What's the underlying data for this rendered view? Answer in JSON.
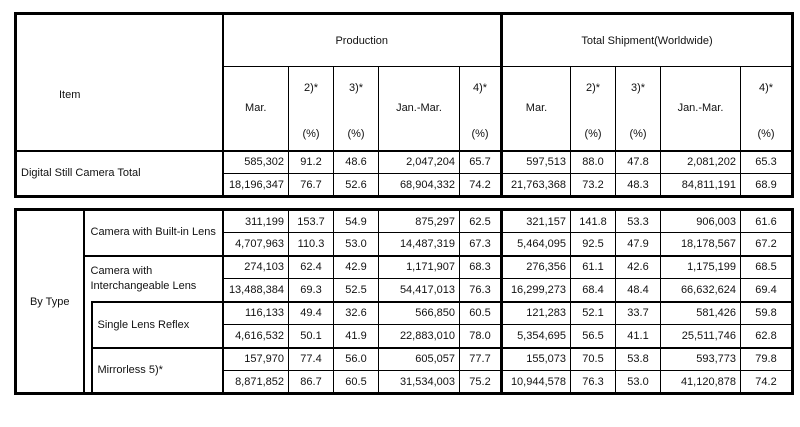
{
  "colors": {
    "border": "#000000",
    "background": "#ffffff",
    "text": "#111111"
  },
  "table1": {
    "item_header": "Item",
    "groups": {
      "production": "Production",
      "shipment": "Total Shipment(Worldwide)"
    },
    "columns": [
      {
        "label": "Mar."
      },
      {
        "label": "2)*",
        "unit": "(%)"
      },
      {
        "label": "3)*",
        "unit": "(%)"
      },
      {
        "label": "Jan.-Mar."
      },
      {
        "label": "4)*",
        "unit": "(%)"
      }
    ],
    "row_label": "Digital Still Camera Total",
    "rows": [
      [
        "585,302",
        "91.2",
        "48.6",
        "2,047,204",
        "65.7",
        "597,513",
        "88.0",
        "47.8",
        "2,081,202",
        "65.3"
      ],
      [
        "18,196,347",
        "76.7",
        "52.6",
        "68,904,332",
        "74.2",
        "21,763,368",
        "73.2",
        "48.3",
        "84,811,191",
        "68.9"
      ]
    ]
  },
  "table2": {
    "group_label": "By Type",
    "categories": [
      {
        "label": "Camera with Built-in Lens",
        "rows": [
          [
            "311,199",
            "153.7",
            "54.9",
            "875,297",
            "62.5",
            "321,157",
            "141.8",
            "53.3",
            "906,003",
            "61.6"
          ],
          [
            "4,707,963",
            "110.3",
            "53.0",
            "14,487,319",
            "67.3",
            "5,464,095",
            "92.5",
            "47.9",
            "18,178,567",
            "67.2"
          ]
        ]
      },
      {
        "label": "Camera with\nInterchangeable Lens",
        "rows": [
          [
            "274,103",
            "62.4",
            "42.9",
            "1,171,907",
            "68.3",
            "276,356",
            "61.1",
            "42.6",
            "1,175,199",
            "68.5"
          ],
          [
            "13,488,384",
            "69.3",
            "52.5",
            "54,417,013",
            "76.3",
            "16,299,273",
            "68.4",
            "48.4",
            "66,632,624",
            "69.4"
          ]
        ]
      },
      {
        "label": "Single Lens Reflex",
        "rows": [
          [
            "116,133",
            "49.4",
            "32.6",
            "566,850",
            "60.5",
            "121,283",
            "52.1",
            "33.7",
            "581,426",
            "59.8"
          ],
          [
            "4,616,532",
            "50.1",
            "41.9",
            "22,883,010",
            "78.0",
            "5,354,695",
            "56.5",
            "41.1",
            "25,511,746",
            "62.8"
          ]
        ]
      },
      {
        "label": "Mirrorless 5)*",
        "rows": [
          [
            "157,970",
            "77.4",
            "56.0",
            "605,057",
            "77.7",
            "155,073",
            "70.5",
            "53.8",
            "593,773",
            "79.8"
          ],
          [
            "8,871,852",
            "86.7",
            "60.5",
            "31,534,003",
            "75.2",
            "10,944,578",
            "76.3",
            "53.0",
            "41,120,878",
            "74.2"
          ]
        ]
      }
    ]
  }
}
